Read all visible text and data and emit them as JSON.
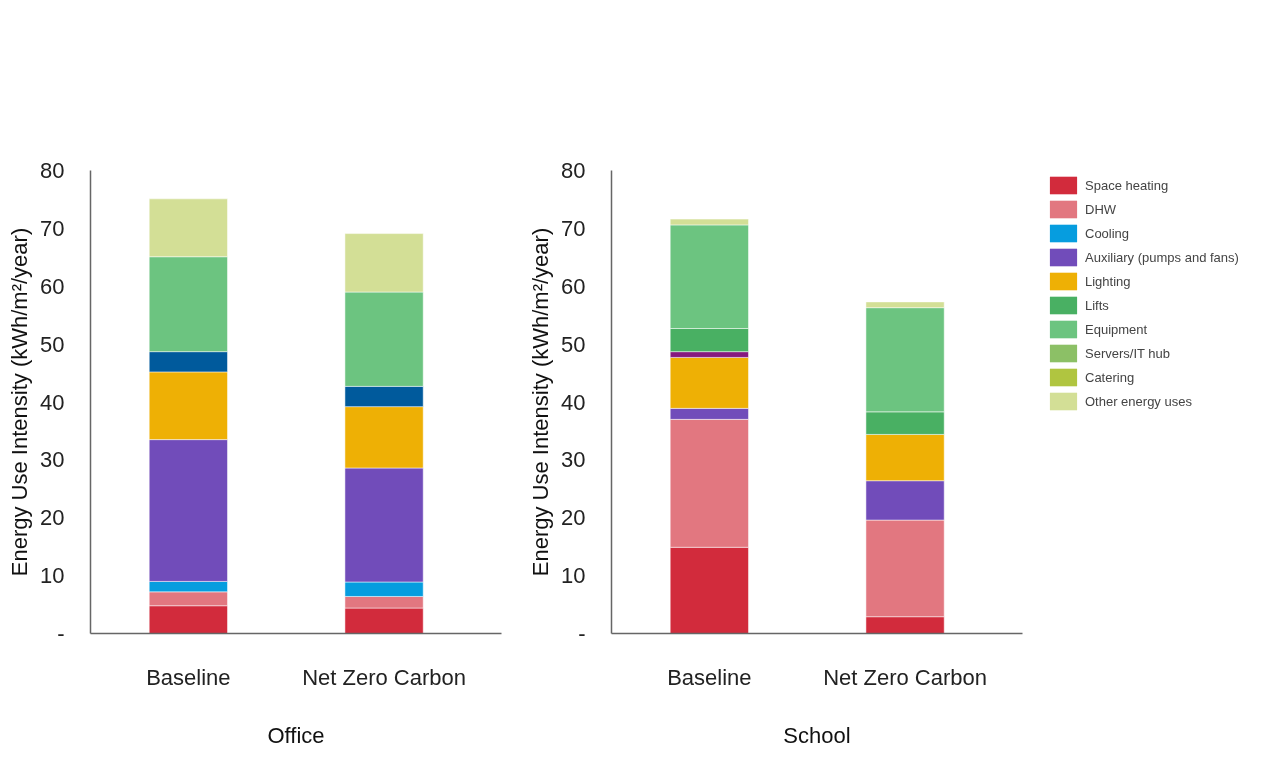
{
  "chart_data": [
    {
      "type": "bar",
      "stacked": true,
      "xlabel": "Office",
      "ylabel": "Energy Use Intensity (kWh/m²/year)",
      "categories": [
        "Baseline",
        "Net Zero Carbon"
      ],
      "ylim": [
        0,
        80
      ],
      "yticks": [
        {
          "value": 0,
          "label": "-"
        },
        10,
        20,
        30,
        40,
        50,
        60,
        70,
        80
      ],
      "grid": false,
      "legend": false,
      "series": [
        {
          "color": "#d22b3c",
          "values": [
            4.8,
            4.4
          ]
        },
        {
          "color": "#e27780",
          "values": [
            2.4,
            2.0
          ]
        },
        {
          "color": "#069ddf",
          "values": [
            1.8,
            2.5
          ]
        },
        {
          "color": "#714cba",
          "values": [
            24.5,
            19.7
          ]
        },
        {
          "color": "#eeb005",
          "values": [
            11.7,
            10.6
          ]
        },
        {
          "color": "#005a9c",
          "values": [
            3.5,
            3.5
          ]
        },
        {
          "color": "#6cc480",
          "values": [
            16.4,
            16.3
          ]
        },
        {
          "color": "#d3df96",
          "values": [
            10.0,
            10.1
          ]
        }
      ]
    },
    {
      "type": "bar",
      "stacked": true,
      "xlabel": "School",
      "ylabel": "Energy Use Intensity (kWh/m²/year)",
      "categories": [
        "Baseline",
        "Net Zero Carbon"
      ],
      "ylim": [
        0,
        80
      ],
      "yticks": [
        {
          "value": 0,
          "label": "-"
        },
        10,
        20,
        30,
        40,
        50,
        60,
        70,
        80
      ],
      "grid": false,
      "legend": "top right",
      "series": [
        {
          "name": "Space heating",
          "color": "#d22b3c",
          "values": [
            14.9,
            2.9
          ]
        },
        {
          "name": "DHW",
          "color": "#e27780",
          "values": [
            22.1,
            16.7
          ]
        },
        {
          "name": "Cooling",
          "color": "#069ddf",
          "values": [
            null,
            null
          ]
        },
        {
          "name": "Auxiliary (pumps and fans)",
          "color": "#714cba",
          "values": [
            1.9,
            6.8
          ]
        },
        {
          "name": "Lighting",
          "color": "#eeb005",
          "values": [
            8.8,
            8.0
          ]
        },
        {
          "color": "#861a7e",
          "values": [
            1.0,
            null
          ]
        },
        {
          "name": "Lifts",
          "color": "#49b063",
          "values": [
            4.0,
            3.9
          ]
        },
        {
          "name": "Equipment",
          "color": "#6cc480",
          "values": [
            17.9,
            18.0
          ]
        },
        {
          "name": "Servers/IT hub",
          "color": "#8cc066",
          "values": [
            null,
            null
          ]
        },
        {
          "name": "Catering",
          "color": "#b0c540",
          "values": [
            null,
            null
          ]
        },
        {
          "name": "Other energy uses",
          "color": "#d3df96",
          "values": [
            1.0,
            1.0
          ]
        }
      ]
    }
  ]
}
